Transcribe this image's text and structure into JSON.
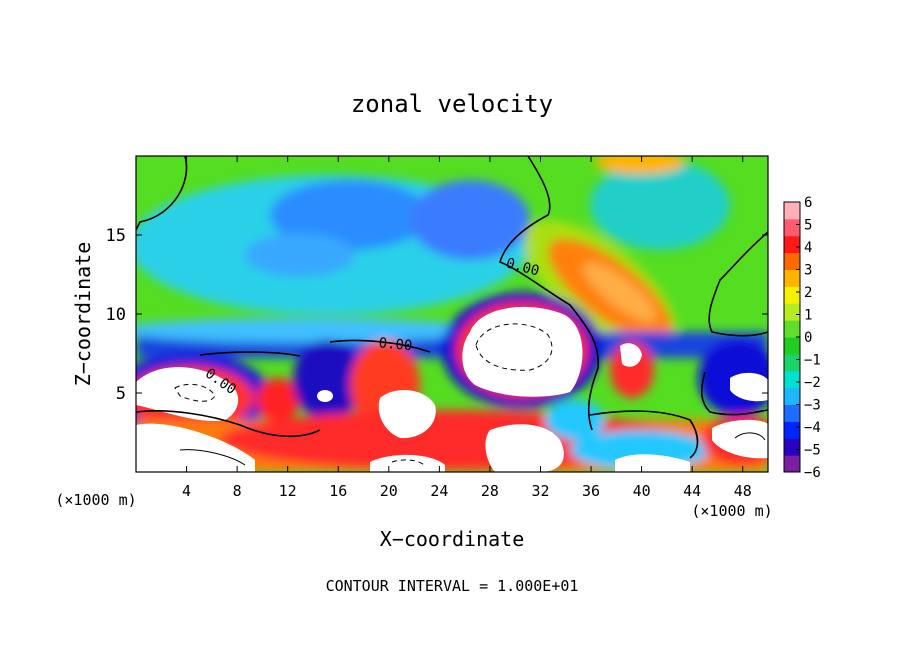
{
  "chart_data": {
    "type": "heatmap",
    "title": "zonal velocity",
    "xlabel": "X−coordinate",
    "ylabel": "Z−coordinate",
    "x_unit_left": "(×1000 m)",
    "x_unit_right": "(×1000 m)",
    "footer": "CONTOUR INTERVAL = 1.000E+01",
    "xlim": [
      0,
      50
    ],
    "ylim": [
      0,
      20
    ],
    "x_ticks": [
      4,
      8,
      12,
      16,
      20,
      24,
      28,
      32,
      36,
      40,
      44,
      48
    ],
    "y_ticks": [
      5,
      10,
      15
    ],
    "colorbar": {
      "ticks": [
        6,
        5,
        4,
        3,
        2,
        1,
        0,
        -1,
        -2,
        -3,
        -4,
        -5,
        -6
      ],
      "range": [
        -6,
        6
      ],
      "colors": [
        "#7a1fa2",
        "#2a00c0",
        "#0026ff",
        "#1e6dff",
        "#1fb6ff",
        "#00e0d0",
        "#18d46a",
        "#22cc22",
        "#5ee02a",
        "#b6ec1e",
        "#f4f000",
        "#ffb400",
        "#ff6a00",
        "#ff1a1a",
        "#ff5a6e",
        "#ffb0b8"
      ]
    },
    "contour_labels": [
      {
        "text": "0.00",
        "x": 6.5,
        "y": 5.5
      },
      {
        "text": "0.00",
        "x": 20.5,
        "y": 7.8
      },
      {
        "text": "0.00",
        "x": 30.5,
        "y": 12.7
      }
    ],
    "grid": false,
    "legend": "colorbar-right"
  }
}
